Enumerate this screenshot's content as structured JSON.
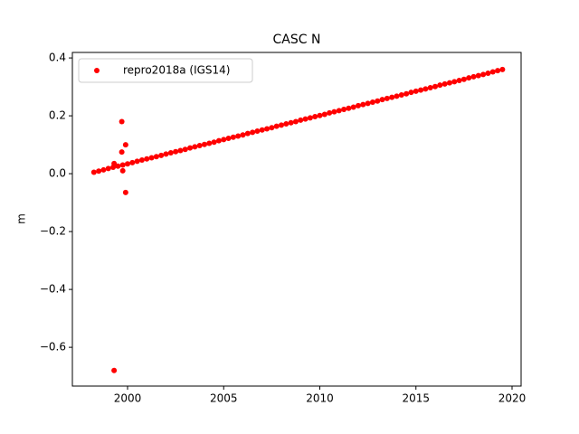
{
  "chart_data": {
    "type": "scatter",
    "title": "CASC N",
    "ylabel": "m",
    "x": [
      1998.25,
      1998.5,
      1998.75,
      1999,
      1999.25,
      1999.5,
      1999.75,
      2000,
      2000.25,
      2000.5,
      2000.75,
      2001,
      2001.25,
      2001.5,
      2001.75,
      2002,
      2002.25,
      2002.5,
      2002.75,
      2003,
      2003.25,
      2003.5,
      2003.75,
      2004,
      2004.25,
      2004.5,
      2004.75,
      2005,
      2005.25,
      2005.5,
      2005.75,
      2006,
      2006.25,
      2006.5,
      2006.75,
      2007,
      2007.25,
      2007.5,
      2007.75,
      2008,
      2008.25,
      2008.5,
      2008.75,
      2009,
      2009.25,
      2009.5,
      2009.75,
      2010,
      2010.25,
      2010.5,
      2010.75,
      2011,
      2011.25,
      2011.5,
      2011.75,
      2012,
      2012.25,
      2012.5,
      2012.75,
      2013,
      2013.25,
      2013.5,
      2013.75,
      2014,
      2014.25,
      2014.5,
      2014.75,
      2015,
      2015.25,
      2015.5,
      2015.75,
      2016,
      2016.25,
      2016.5,
      2016.75,
      2017,
      2017.25,
      2017.5,
      2017.75,
      2018,
      2018.25,
      2018.5,
      2018.75,
      2019,
      2019.25,
      2019.5,
      1999.3,
      1999.3,
      1999.7,
      1999.7,
      1999.75,
      1999.9,
      1999.9
    ],
    "series": [
      {
        "name": "repro2018a (IGS14)",
        "color": "#ff0000",
        "values": [
          0.005,
          0.009,
          0.013,
          0.018,
          0.022,
          0.026,
          0.03,
          0.034,
          0.038,
          0.043,
          0.047,
          0.051,
          0.055,
          0.059,
          0.063,
          0.068,
          0.072,
          0.076,
          0.08,
          0.084,
          0.089,
          0.093,
          0.097,
          0.101,
          0.105,
          0.109,
          0.114,
          0.118,
          0.122,
          0.126,
          0.13,
          0.134,
          0.139,
          0.143,
          0.147,
          0.151,
          0.155,
          0.159,
          0.164,
          0.168,
          0.172,
          0.176,
          0.18,
          0.185,
          0.189,
          0.193,
          0.197,
          0.201,
          0.205,
          0.21,
          0.214,
          0.218,
          0.222,
          0.226,
          0.23,
          0.235,
          0.239,
          0.243,
          0.247,
          0.251,
          0.256,
          0.26,
          0.264,
          0.268,
          0.272,
          0.276,
          0.281,
          0.285,
          0.289,
          0.293,
          0.297,
          0.301,
          0.306,
          0.31,
          0.314,
          0.318,
          0.322,
          0.326,
          0.331,
          0.335,
          0.339,
          0.343,
          0.347,
          0.352,
          0.356,
          0.36,
          -0.68,
          0.035,
          0.18,
          0.075,
          0.01,
          0.1,
          -0.065
        ]
      }
    ],
    "xlim": [
      1997.13,
      2020.47
    ],
    "ylim": [
      -0.734,
      0.419
    ],
    "xticks": [
      2000,
      2005,
      2010,
      2015,
      2020
    ],
    "yticks": [
      {
        "value": -0.6,
        "label": "−0.6"
      },
      {
        "value": -0.4,
        "label": "−0.4"
      },
      {
        "value": -0.2,
        "label": "−0.2"
      },
      {
        "value": 0,
        "label": "0.0"
      },
      0.2,
      0.4
    ],
    "legend": "upper left"
  }
}
